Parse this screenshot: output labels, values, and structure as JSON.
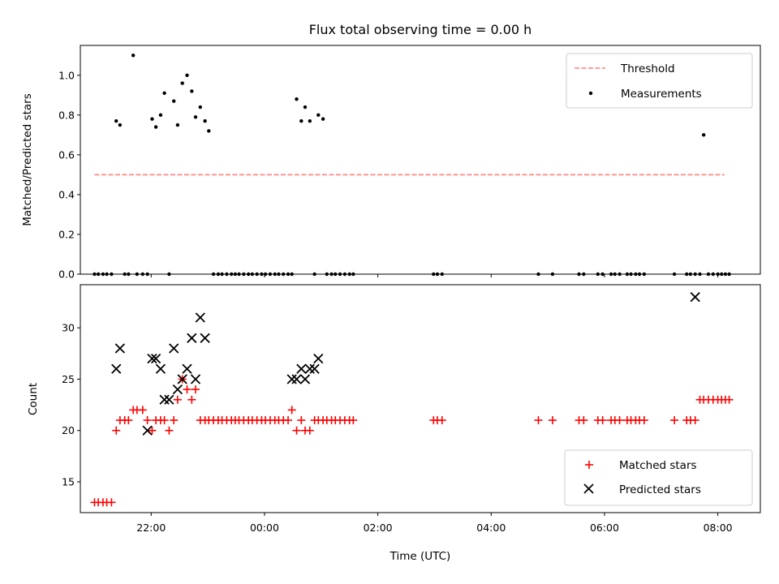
{
  "chart_data": [
    {
      "type": "scatter",
      "title": "Flux total observing time = 0.00 h",
      "ylabel": "Matched/Predicted stars",
      "xlim": [
        "20:45",
        "08:45"
      ],
      "ylim": [
        0,
        1.15
      ],
      "yticks": [
        0.0,
        0.2,
        0.4,
        0.6,
        0.8,
        1.0
      ],
      "ytick_labels": [
        "0.0",
        "0.2",
        "0.4",
        "0.6",
        "0.8",
        "1.0"
      ],
      "legend": {
        "position": "top-right",
        "entries": [
          "Threshold",
          "Measurements"
        ]
      },
      "threshold": {
        "name": "Threshold",
        "value": 0.5,
        "x_start": "21:00",
        "x_end": "08:07",
        "color": "#ff7f7f"
      },
      "measurements": {
        "name": "Measurements",
        "color": "#000000",
        "x": [
          "21:00",
          "21:04",
          "21:09",
          "21:13",
          "21:18",
          "21:23",
          "21:27",
          "21:32",
          "21:36",
          "21:41",
          "21:45",
          "21:51",
          "21:56",
          "22:01",
          "22:05",
          "22:10",
          "22:14",
          "22:19",
          "22:24",
          "22:28",
          "22:33",
          "22:38",
          "22:43",
          "22:47",
          "22:52",
          "22:57",
          "23:01",
          "23:06",
          "23:11",
          "23:15",
          "23:20",
          "23:25",
          "23:29",
          "23:33",
          "23:38",
          "23:43",
          "23:47",
          "23:52",
          "23:57",
          "00:01",
          "00:06",
          "00:11",
          "00:15",
          "00:20",
          "00:25",
          "00:29",
          "00:34",
          "00:39",
          "00:43",
          "00:48",
          "00:53",
          "00:57",
          "01:02",
          "01:06",
          "01:11",
          "01:15",
          "01:20",
          "01:25",
          "01:30",
          "01:34",
          "02:59",
          "03:03",
          "03:08",
          "04:50",
          "05:05",
          "05:33",
          "05:38",
          "05:53",
          "05:58",
          "06:07",
          "06:11",
          "06:16",
          "06:24",
          "06:28",
          "06:33",
          "06:37",
          "06:42",
          "07:14",
          "07:27",
          "07:31",
          "07:36",
          "07:41",
          "07:45",
          "07:50",
          "07:55",
          "08:00",
          "08:04",
          "08:08",
          "08:12"
        ],
        "y": [
          0,
          0,
          0,
          0,
          0,
          0.77,
          0.75,
          0,
          0,
          1.1,
          0,
          0,
          0,
          0.78,
          0.74,
          0.8,
          0.91,
          0,
          0.87,
          0.75,
          0.96,
          1.0,
          0.92,
          0.79,
          0.84,
          0.77,
          0.72,
          0,
          0,
          0,
          0,
          0,
          0,
          0,
          0,
          0,
          0,
          0,
          0,
          0,
          0,
          0,
          0,
          0,
          0,
          0,
          0.88,
          0.77,
          0.84,
          0.77,
          0,
          0.8,
          0.78,
          0,
          0,
          0,
          0,
          0,
          0,
          0,
          0,
          0,
          0,
          0,
          0,
          0,
          0,
          0,
          0,
          0,
          0,
          0,
          0,
          0,
          0,
          0,
          0,
          0,
          0,
          0,
          0,
          0,
          0.7,
          0,
          0,
          0,
          0,
          0,
          0
        ]
      }
    },
    {
      "type": "scatter",
      "xlabel": "Time (UTC)",
      "ylabel": "Count",
      "xlim": [
        "20:45",
        "08:45"
      ],
      "ylim": [
        12,
        34.2
      ],
      "xticks": [
        "22:00",
        "00:00",
        "02:00",
        "04:00",
        "06:00",
        "08:00"
      ],
      "yticks": [
        15,
        20,
        25,
        30
      ],
      "ytick_labels": [
        "15",
        "20",
        "25",
        "30"
      ],
      "legend": {
        "position": "bottom-right",
        "entries": [
          "Matched stars",
          "Predicted stars"
        ]
      },
      "series": [
        {
          "name": "Matched stars",
          "marker": "+",
          "color": "#ff0000",
          "x": [
            "21:00",
            "21:04",
            "21:09",
            "21:13",
            "21:18",
            "21:23",
            "21:27",
            "21:32",
            "21:36",
            "21:41",
            "21:45",
            "21:51",
            "21:56",
            "22:01",
            "22:05",
            "22:10",
            "22:14",
            "22:19",
            "22:24",
            "22:28",
            "22:33",
            "22:38",
            "22:43",
            "22:47",
            "22:52",
            "22:57",
            "23:01",
            "23:06",
            "23:11",
            "23:15",
            "23:20",
            "23:25",
            "23:29",
            "23:33",
            "23:38",
            "23:43",
            "23:47",
            "23:52",
            "23:57",
            "00:01",
            "00:06",
            "00:11",
            "00:15",
            "00:20",
            "00:25",
            "00:29",
            "00:34",
            "00:39",
            "00:43",
            "00:48",
            "00:53",
            "00:57",
            "01:02",
            "01:06",
            "01:11",
            "01:15",
            "01:20",
            "01:25",
            "01:30",
            "01:34",
            "02:59",
            "03:03",
            "03:08",
            "04:50",
            "05:05",
            "05:33",
            "05:38",
            "05:53",
            "05:58",
            "06:07",
            "06:11",
            "06:16",
            "06:24",
            "06:28",
            "06:33",
            "06:37",
            "06:42",
            "07:14",
            "07:27",
            "07:31",
            "07:36",
            "07:41",
            "07:45",
            "07:50",
            "07:55",
            "08:00",
            "08:04",
            "08:08",
            "08:12"
          ],
          "y": [
            13,
            13,
            13,
            13,
            13,
            20,
            21,
            21,
            21,
            22,
            22,
            22,
            21,
            20,
            21,
            21,
            21,
            20,
            21,
            23,
            25,
            24,
            23,
            24,
            21,
            21,
            21,
            21,
            21,
            21,
            21,
            21,
            21,
            21,
            21,
            21,
            21,
            21,
            21,
            21,
            21,
            21,
            21,
            21,
            21,
            22,
            20,
            21,
            20,
            20,
            21,
            21,
            21,
            21,
            21,
            21,
            21,
            21,
            21,
            21,
            21,
            21,
            21,
            21,
            21,
            21,
            21,
            21,
            21,
            21,
            21,
            21,
            21,
            21,
            21,
            21,
            21,
            21,
            21,
            21,
            21,
            23,
            23,
            23,
            23,
            23,
            23,
            23,
            23
          ]
        },
        {
          "name": "Predicted stars",
          "marker": "x",
          "color": "#000000",
          "x": [
            "21:23",
            "21:27",
            "21:56",
            "22:01",
            "22:05",
            "22:10",
            "22:14",
            "22:19",
            "22:24",
            "22:28",
            "22:33",
            "22:38",
            "22:43",
            "22:47",
            "22:52",
            "22:57",
            "00:29",
            "00:34",
            "00:39",
            "00:43",
            "00:48",
            "00:53",
            "00:57",
            "07:36"
          ],
          "y": [
            26,
            28,
            20,
            27,
            27,
            26,
            23,
            23,
            28,
            24,
            25,
            26,
            29,
            25,
            31,
            29,
            25,
            25,
            26,
            25,
            26,
            26,
            27,
            33
          ]
        }
      ]
    }
  ]
}
